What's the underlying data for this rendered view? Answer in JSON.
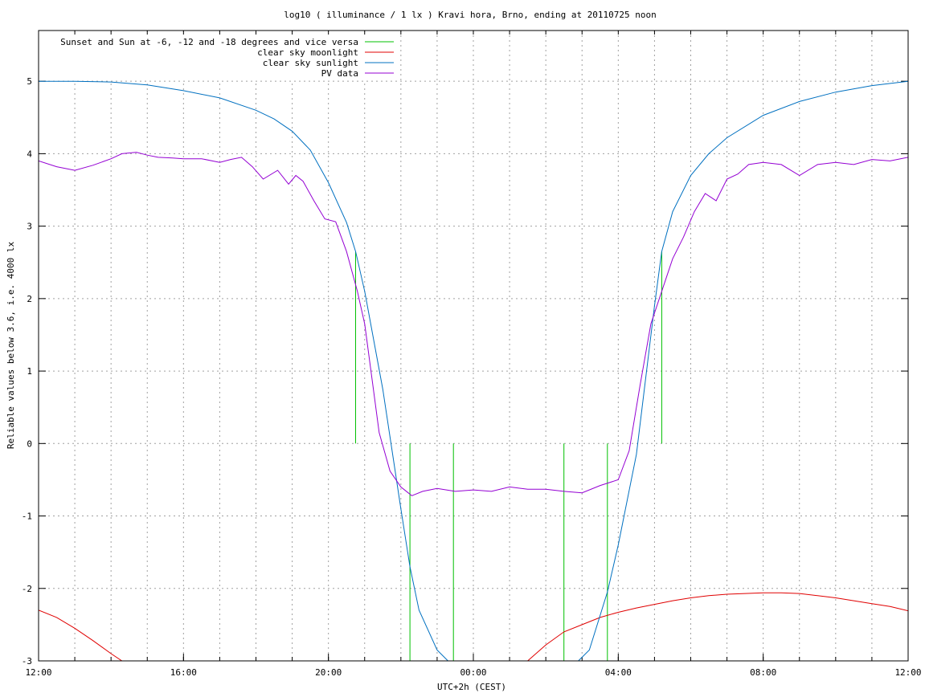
{
  "chart_data": {
    "type": "line",
    "title": "log10 ( illuminance / 1 lx ) Kravi hora, Brno, ending at 20110725 noon",
    "xlabel": "UTC+2h (CEST)",
    "ylabel": "Reliable values below 3.6, i.e. 4000 lx",
    "xlim": [
      0,
      24
    ],
    "ylim": [
      -3,
      5.7
    ],
    "x_units": "hours since 12:00",
    "x_tick_values": [
      0,
      4,
      8,
      12,
      16,
      20,
      24
    ],
    "x_tick_labels": [
      "12:00",
      "16:00",
      "20:00",
      "00:00",
      "04:00",
      "08:00",
      "12:00"
    ],
    "x_minor_step": 1,
    "y_ticks": [
      -3,
      -2,
      -1,
      0,
      1,
      2,
      3,
      4,
      5
    ],
    "grid": true,
    "legend_position": "top-left",
    "series": [
      {
        "name": "Sunset and Sun at -6, -12 and -18 degrees and vice versa",
        "color": "#00c000",
        "style": "vertical-markers",
        "markers": [
          {
            "x": 8.75,
            "y_from": 0,
            "y_to": 2.65
          },
          {
            "x": 10.25,
            "y_from": -3,
            "y_to": 0
          },
          {
            "x": 11.45,
            "y_from": -3,
            "y_to": 0
          },
          {
            "x": 14.5,
            "y_from": -3,
            "y_to": 0
          },
          {
            "x": 15.7,
            "y_from": -3,
            "y_to": 0
          },
          {
            "x": 17.2,
            "y_from": 0,
            "y_to": 2.65
          }
        ]
      },
      {
        "name": "clear sky moonlight",
        "color": "#e00000",
        "x": [
          0,
          0.5,
          1.0,
          1.5,
          2.0,
          2.3,
          13.5,
          14.0,
          14.5,
          15.0,
          15.5,
          16.0,
          16.5,
          17.0,
          17.5,
          18.0,
          18.5,
          19.0,
          19.5,
          20.0,
          20.5,
          21.0,
          21.5,
          22.0,
          22.5,
          23.0,
          23.5,
          24.0
        ],
        "y": [
          -2.3,
          -2.4,
          -2.55,
          -2.72,
          -2.9,
          -3.0,
          -3.0,
          -2.78,
          -2.6,
          -2.5,
          -2.4,
          -2.33,
          -2.27,
          -2.22,
          -2.17,
          -2.13,
          -2.1,
          -2.08,
          -2.07,
          -2.06,
          -2.06,
          -2.07,
          -2.1,
          -2.13,
          -2.17,
          -2.21,
          -2.25,
          -2.31
        ]
      },
      {
        "name": "clear sky sunlight",
        "color": "#0070c0",
        "x": [
          0,
          1,
          2,
          3,
          4,
          5,
          6,
          6.5,
          7,
          7.5,
          8,
          8.5,
          8.75,
          9,
          9.5,
          10,
          10.25,
          10.5,
          11,
          11.3,
          14.9,
          15.2,
          15.7,
          16,
          16.5,
          17,
          17.2,
          17.5,
          18,
          18.5,
          19,
          20,
          21,
          22,
          23,
          24
        ],
        "y": [
          5.0,
          5.0,
          4.99,
          4.95,
          4.87,
          4.77,
          4.6,
          4.48,
          4.31,
          4.05,
          3.6,
          3.05,
          2.65,
          2.1,
          0.75,
          -0.9,
          -1.7,
          -2.3,
          -2.85,
          -3.0,
          -3.0,
          -2.85,
          -2.05,
          -1.4,
          -0.15,
          1.9,
          2.65,
          3.2,
          3.7,
          4.0,
          4.22,
          4.53,
          4.72,
          4.85,
          4.94,
          5.0
        ]
      },
      {
        "name": "PV data",
        "color": "#9400d3",
        "x": [
          0,
          0.5,
          1.0,
          1.5,
          2.0,
          2.3,
          2.7,
          3.0,
          3.3,
          3.7,
          4.0,
          4.5,
          5.0,
          5.3,
          5.6,
          5.9,
          6.2,
          6.6,
          6.9,
          7.1,
          7.3,
          7.6,
          7.9,
          8.2,
          8.5,
          8.8,
          9.0,
          9.2,
          9.4,
          9.7,
          10.0,
          10.3,
          10.6,
          11.0,
          11.5,
          12.0,
          12.5,
          13.0,
          13.5,
          14.0,
          14.5,
          15.0,
          15.5,
          16.0,
          16.3,
          16.6,
          16.9,
          17.2,
          17.5,
          17.8,
          18.1,
          18.4,
          18.7,
          19.0,
          19.3,
          19.6,
          20.0,
          20.5,
          21.0,
          21.5,
          22.0,
          22.5,
          23.0,
          23.5,
          24.0
        ],
        "y": [
          3.9,
          3.82,
          3.77,
          3.84,
          3.93,
          4.0,
          4.02,
          3.98,
          3.95,
          3.94,
          3.93,
          3.93,
          3.88,
          3.92,
          3.95,
          3.82,
          3.65,
          3.77,
          3.58,
          3.7,
          3.62,
          3.35,
          3.1,
          3.06,
          2.65,
          2.1,
          1.65,
          0.9,
          0.15,
          -0.38,
          -0.6,
          -0.72,
          -0.66,
          -0.62,
          -0.66,
          -0.64,
          -0.66,
          -0.6,
          -0.63,
          -0.63,
          -0.66,
          -0.68,
          -0.58,
          -0.5,
          -0.1,
          0.8,
          1.65,
          2.1,
          2.55,
          2.85,
          3.2,
          3.45,
          3.35,
          3.65,
          3.72,
          3.85,
          3.88,
          3.85,
          3.7,
          3.85,
          3.88,
          3.85,
          3.92,
          3.9,
          3.95
        ]
      }
    ]
  }
}
